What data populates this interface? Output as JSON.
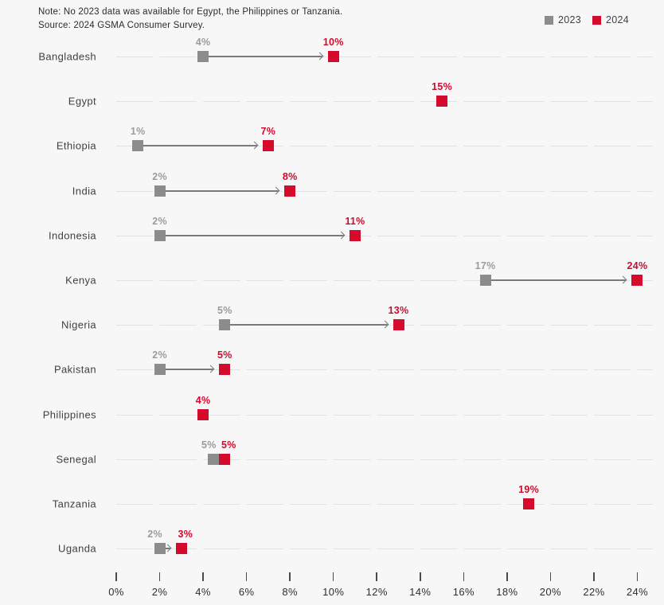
{
  "note": "Note: No 2023 data was available for Egypt, the Philippines or Tanzania.",
  "source": "Source: 2024 GSMA Consumer Survey.",
  "legend": {
    "items": [
      {
        "label": "2023",
        "color": "#8c8c8c"
      },
      {
        "label": "2024",
        "color": "#d40b2c"
      }
    ]
  },
  "chart_data": {
    "type": "dumbbell",
    "title": "",
    "xlabel": "",
    "ylabel": "",
    "xlim": [
      0,
      24
    ],
    "x_tick_values": [
      0,
      2,
      4,
      6,
      8,
      10,
      12,
      14,
      16,
      18,
      20,
      22,
      24
    ],
    "x_tick_labels": [
      "0%",
      "2%",
      "4%",
      "6%",
      "8%",
      "10%",
      "12%",
      "14%",
      "16%",
      "18%",
      "20%",
      "22%",
      "24%"
    ],
    "grid": "dashed-row-baselines",
    "legend_position": "top-right",
    "series_names": [
      "2023",
      "2024"
    ],
    "rows": [
      {
        "country": "Bangladesh",
        "y2023": 4,
        "y2024": 10,
        "label2023": "4%",
        "label2024": "10%"
      },
      {
        "country": "Egypt",
        "y2023": null,
        "y2024": 15,
        "label2023": null,
        "label2024": "15%"
      },
      {
        "country": "Ethiopia",
        "y2023": 1,
        "y2024": 7,
        "label2023": "1%",
        "label2024": "7%"
      },
      {
        "country": "India",
        "y2023": 2,
        "y2024": 8,
        "label2023": "2%",
        "label2024": "8%"
      },
      {
        "country": "Indonesia",
        "y2023": 2,
        "y2024": 11,
        "label2023": "2%",
        "label2024": "11%"
      },
      {
        "country": "Kenya",
        "y2023": 17,
        "y2024": 24,
        "label2023": "17%",
        "label2024": "24%"
      },
      {
        "country": "Nigeria",
        "y2023": 5,
        "y2024": 13,
        "label2023": "5%",
        "label2024": "13%"
      },
      {
        "country": "Pakistan",
        "y2023": 2,
        "y2024": 5,
        "label2023": "2%",
        "label2024": "5%"
      },
      {
        "country": "Philippines",
        "y2023": null,
        "y2024": 4,
        "label2023": null,
        "label2024": "4%"
      },
      {
        "country": "Senegal",
        "y2023": 5,
        "y2024": 5,
        "label2023": "5%",
        "label2024": "5%"
      },
      {
        "country": "Tanzania",
        "y2023": null,
        "y2024": 19,
        "label2023": null,
        "label2024": "19%"
      },
      {
        "country": "Uganda",
        "y2023": 2,
        "y2024": 3,
        "label2023": "2%",
        "label2024": "3%"
      }
    ],
    "colors": {
      "marker_2023": "#8c8c8c",
      "marker_2024": "#d40b2c",
      "value_label_2023": "#9c9c9c",
      "value_label_2024": "#cf0a2c",
      "arrow": "#7a7a7a",
      "baseline": "#e2e2e2"
    }
  }
}
